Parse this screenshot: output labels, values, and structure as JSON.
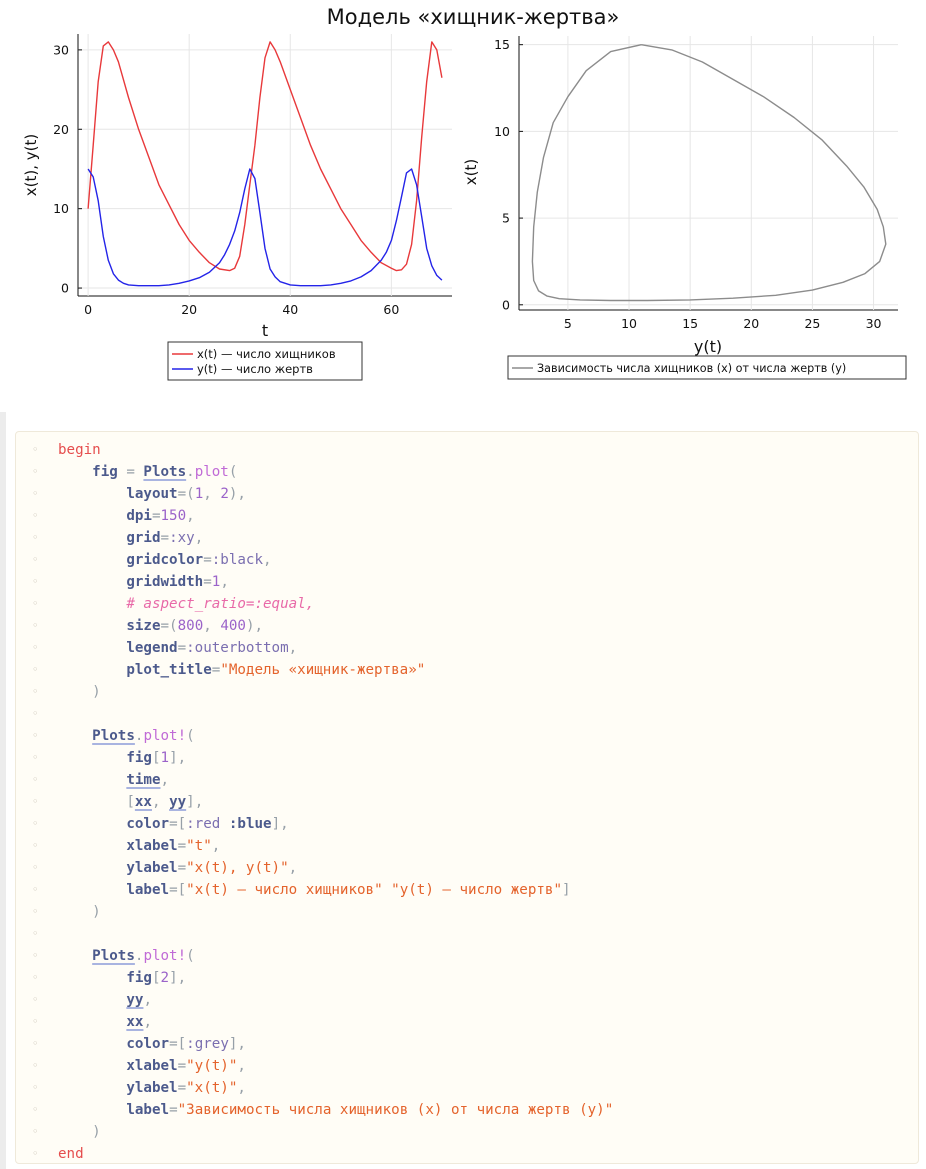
{
  "plot": {
    "title": "Модель «хищник-жертва»",
    "left": {
      "xlabel": "t",
      "ylabel": "x(t), y(t)",
      "x_ticks": [
        "0",
        "20",
        "40",
        "60"
      ],
      "y_ticks": [
        "0",
        "10",
        "20",
        "30"
      ],
      "legend": [
        "x(t) — число хищников",
        "y(t) — число жертв"
      ]
    },
    "right": {
      "xlabel": "y(t)",
      "ylabel": "x(t)",
      "x_ticks": [
        "5",
        "10",
        "15",
        "20",
        "25",
        "30"
      ],
      "y_ticks": [
        "0",
        "5",
        "10",
        "15"
      ],
      "legend": [
        "Зависимость числа хищников (x) от числа жертв (y)"
      ]
    }
  },
  "chart_data": [
    {
      "type": "line",
      "xlabel": "t",
      "ylabel": "x(t), y(t)",
      "xlim": [
        -2,
        72
      ],
      "ylim": [
        -1,
        32
      ],
      "grid": true,
      "legend_placement": "outer-bottom",
      "series": [
        {
          "name": "x(t) — число хищников",
          "color": "#e8393b",
          "x": [
            0,
            1,
            2,
            3,
            4,
            5,
            6,
            8,
            10,
            12,
            14,
            16,
            18,
            20,
            22,
            24,
            26,
            28,
            29,
            30,
            31,
            32,
            33,
            34,
            35,
            36,
            37,
            38,
            40,
            42,
            44,
            46,
            48,
            50,
            52,
            54,
            56,
            58,
            60,
            61,
            62,
            63,
            64,
            65,
            66,
            67,
            68,
            69,
            70
          ],
          "y": [
            10,
            18,
            26,
            30.5,
            31,
            30,
            28.5,
            24,
            20,
            16.5,
            13,
            10.5,
            8,
            6,
            4.5,
            3.2,
            2.4,
            2.2,
            2.5,
            4,
            8,
            13,
            18,
            24,
            29,
            31,
            30,
            28.5,
            25,
            21.5,
            18,
            15,
            12.5,
            10,
            8,
            6,
            4.5,
            3.2,
            2.5,
            2.2,
            2.3,
            3,
            5.5,
            11,
            19,
            26,
            31,
            30,
            26.5
          ]
        },
        {
          "name": "y(t) — число жертв",
          "color": "#2424e8",
          "x": [
            0,
            1,
            2,
            3,
            4,
            5,
            6,
            7,
            8,
            10,
            12,
            14,
            16,
            18,
            20,
            22,
            24,
            26,
            27,
            28,
            29,
            30,
            31,
            32,
            33,
            34,
            35,
            36,
            37,
            38,
            40,
            42,
            44,
            46,
            48,
            50,
            52,
            54,
            56,
            58,
            59,
            60,
            61,
            62,
            63,
            64,
            65,
            66,
            67,
            68,
            69,
            70
          ],
          "y": [
            15,
            14,
            11,
            6.5,
            3.5,
            1.8,
            1,
            0.6,
            0.4,
            0.3,
            0.3,
            0.3,
            0.4,
            0.6,
            0.9,
            1.3,
            2,
            3.2,
            4.2,
            5.5,
            7.2,
            9.5,
            12.5,
            15,
            13.8,
            9.5,
            5,
            2.4,
            1.4,
            0.8,
            0.4,
            0.3,
            0.3,
            0.3,
            0.4,
            0.6,
            0.9,
            1.4,
            2.2,
            3.5,
            4.5,
            6,
            8.5,
            11.5,
            14.5,
            15,
            13,
            9,
            5,
            2.8,
            1.6,
            1
          ]
        }
      ]
    },
    {
      "type": "line",
      "xlabel": "y(t)",
      "ylabel": "x(t)",
      "xlim": [
        1,
        32
      ],
      "ylim": [
        -0.3,
        15.5
      ],
      "grid": true,
      "legend_placement": "outer-bottom",
      "series": [
        {
          "name": "Зависимость числа хищников (x) от числа жертв (y)",
          "color": "#8c8c8c",
          "x": [
            11,
            8.5,
            6.5,
            5,
            3.8,
            3,
            2.5,
            2.2,
            2.1,
            2.2,
            2.6,
            3.3,
            4.3,
            6,
            8.5,
            11.5,
            15,
            18.5,
            22,
            25,
            27.5,
            29.3,
            30.5,
            31,
            30.8,
            30.3,
            29.2,
            27.8,
            25.8,
            23.5,
            21,
            18.5,
            16,
            13.5,
            11
          ],
          "y": [
            15,
            14.6,
            13.5,
            12,
            10.5,
            8.5,
            6.5,
            4.5,
            2.5,
            1.4,
            0.8,
            0.5,
            0.35,
            0.28,
            0.25,
            0.25,
            0.28,
            0.38,
            0.55,
            0.85,
            1.3,
            1.8,
            2.5,
            3.5,
            4.5,
            5.5,
            6.8,
            8,
            9.5,
            10.8,
            12,
            13,
            14,
            14.7,
            15
          ]
        }
      ]
    }
  ],
  "code": {
    "lines": [
      [
        [
          "kw",
          "begin"
        ]
      ],
      [
        [
          "p",
          "    "
        ],
        [
          "arg",
          "fig"
        ],
        [
          "p",
          " = "
        ],
        [
          "var",
          "Plots"
        ],
        [
          "p",
          "."
        ],
        [
          "fn",
          "plot"
        ],
        [
          "p",
          "("
        ]
      ],
      [
        [
          "p",
          "        "
        ],
        [
          "arg",
          "layout"
        ],
        [
          "p",
          "=("
        ],
        [
          "num",
          "1"
        ],
        [
          "p",
          ", "
        ],
        [
          "num",
          "2"
        ],
        [
          "p",
          "),"
        ]
      ],
      [
        [
          "p",
          "        "
        ],
        [
          "arg",
          "dpi"
        ],
        [
          "p",
          "="
        ],
        [
          "num",
          "150"
        ],
        [
          "p",
          ","
        ]
      ],
      [
        [
          "p",
          "        "
        ],
        [
          "arg",
          "grid"
        ],
        [
          "p",
          "="
        ],
        [
          "sym",
          ":xy"
        ],
        [
          "p",
          ","
        ]
      ],
      [
        [
          "p",
          "        "
        ],
        [
          "arg",
          "gridcolor"
        ],
        [
          "p",
          "="
        ],
        [
          "sym",
          ":black"
        ],
        [
          "p",
          ","
        ]
      ],
      [
        [
          "p",
          "        "
        ],
        [
          "arg",
          "gridwidth"
        ],
        [
          "p",
          "="
        ],
        [
          "num",
          "1"
        ],
        [
          "p",
          ","
        ]
      ],
      [
        [
          "p",
          "        "
        ],
        [
          "cmt",
          "# aspect_ratio=:equal,"
        ]
      ],
      [
        [
          "p",
          "        "
        ],
        [
          "arg",
          "size"
        ],
        [
          "p",
          "=("
        ],
        [
          "num",
          "800"
        ],
        [
          "p",
          ", "
        ],
        [
          "num",
          "400"
        ],
        [
          "p",
          "),"
        ]
      ],
      [
        [
          "p",
          "        "
        ],
        [
          "arg",
          "legend"
        ],
        [
          "p",
          "="
        ],
        [
          "sym",
          ":outerbottom"
        ],
        [
          "p",
          ","
        ]
      ],
      [
        [
          "p",
          "        "
        ],
        [
          "arg",
          "plot_title"
        ],
        [
          "p",
          "="
        ],
        [
          "str",
          "\"Модель «хищник-жертва»\""
        ]
      ],
      [
        [
          "p",
          "    )"
        ]
      ],
      [],
      [
        [
          "p",
          "    "
        ],
        [
          "var",
          "Plots"
        ],
        [
          "p",
          "."
        ],
        [
          "fn",
          "plot!"
        ],
        [
          "p",
          "("
        ]
      ],
      [
        [
          "p",
          "        "
        ],
        [
          "arg",
          "fig"
        ],
        [
          "p",
          "["
        ],
        [
          "num",
          "1"
        ],
        [
          "p",
          "],"
        ]
      ],
      [
        [
          "p",
          "        "
        ],
        [
          "var",
          "time"
        ],
        [
          "p",
          ","
        ]
      ],
      [
        [
          "p",
          "        ["
        ],
        [
          "var",
          "xx"
        ],
        [
          "p",
          ", "
        ],
        [
          "var",
          "yy"
        ],
        [
          "p",
          "],"
        ]
      ],
      [
        [
          "p",
          "        "
        ],
        [
          "arg",
          "color"
        ],
        [
          "p",
          "=["
        ],
        [
          "sym",
          ":red"
        ],
        [
          "p",
          " "
        ],
        [
          "arg",
          ":blue"
        ],
        [
          "p",
          "],"
        ]
      ],
      [
        [
          "p",
          "        "
        ],
        [
          "arg",
          "xlabel"
        ],
        [
          "p",
          "="
        ],
        [
          "str",
          "\"t\""
        ],
        [
          "p",
          ","
        ]
      ],
      [
        [
          "p",
          "        "
        ],
        [
          "arg",
          "ylabel"
        ],
        [
          "p",
          "="
        ],
        [
          "str",
          "\"x(t), y(t)\""
        ],
        [
          "p",
          ","
        ]
      ],
      [
        [
          "p",
          "        "
        ],
        [
          "arg",
          "label"
        ],
        [
          "p",
          "=["
        ],
        [
          "str",
          "\"x(t) — число хищников\""
        ],
        [
          "p",
          " "
        ],
        [
          "str",
          "\"y(t) — число жертв\""
        ],
        [
          "p",
          "]"
        ]
      ],
      [
        [
          "p",
          "    )"
        ]
      ],
      [],
      [
        [
          "p",
          "    "
        ],
        [
          "var",
          "Plots"
        ],
        [
          "p",
          "."
        ],
        [
          "fn",
          "plot!"
        ],
        [
          "p",
          "("
        ]
      ],
      [
        [
          "p",
          "        "
        ],
        [
          "arg",
          "fig"
        ],
        [
          "p",
          "["
        ],
        [
          "num",
          "2"
        ],
        [
          "p",
          "],"
        ]
      ],
      [
        [
          "p",
          "        "
        ],
        [
          "var",
          "yy"
        ],
        [
          "p",
          ","
        ]
      ],
      [
        [
          "p",
          "        "
        ],
        [
          "var",
          "xx"
        ],
        [
          "p",
          ","
        ]
      ],
      [
        [
          "p",
          "        "
        ],
        [
          "arg",
          "color"
        ],
        [
          "p",
          "=["
        ],
        [
          "sym",
          ":grey"
        ],
        [
          "p",
          "],"
        ]
      ],
      [
        [
          "p",
          "        "
        ],
        [
          "arg",
          "xlabel"
        ],
        [
          "p",
          "="
        ],
        [
          "str",
          "\"y(t)\""
        ],
        [
          "p",
          ","
        ]
      ],
      [
        [
          "p",
          "        "
        ],
        [
          "arg",
          "ylabel"
        ],
        [
          "p",
          "="
        ],
        [
          "str",
          "\"x(t)\""
        ],
        [
          "p",
          ","
        ]
      ],
      [
        [
          "p",
          "        "
        ],
        [
          "arg",
          "label"
        ],
        [
          "p",
          "="
        ],
        [
          "str",
          "\"Зависимость числа хищников (x) от числа жертв (y)\""
        ]
      ],
      [
        [
          "p",
          "    )"
        ]
      ],
      [
        [
          "kw",
          "end"
        ]
      ]
    ]
  }
}
